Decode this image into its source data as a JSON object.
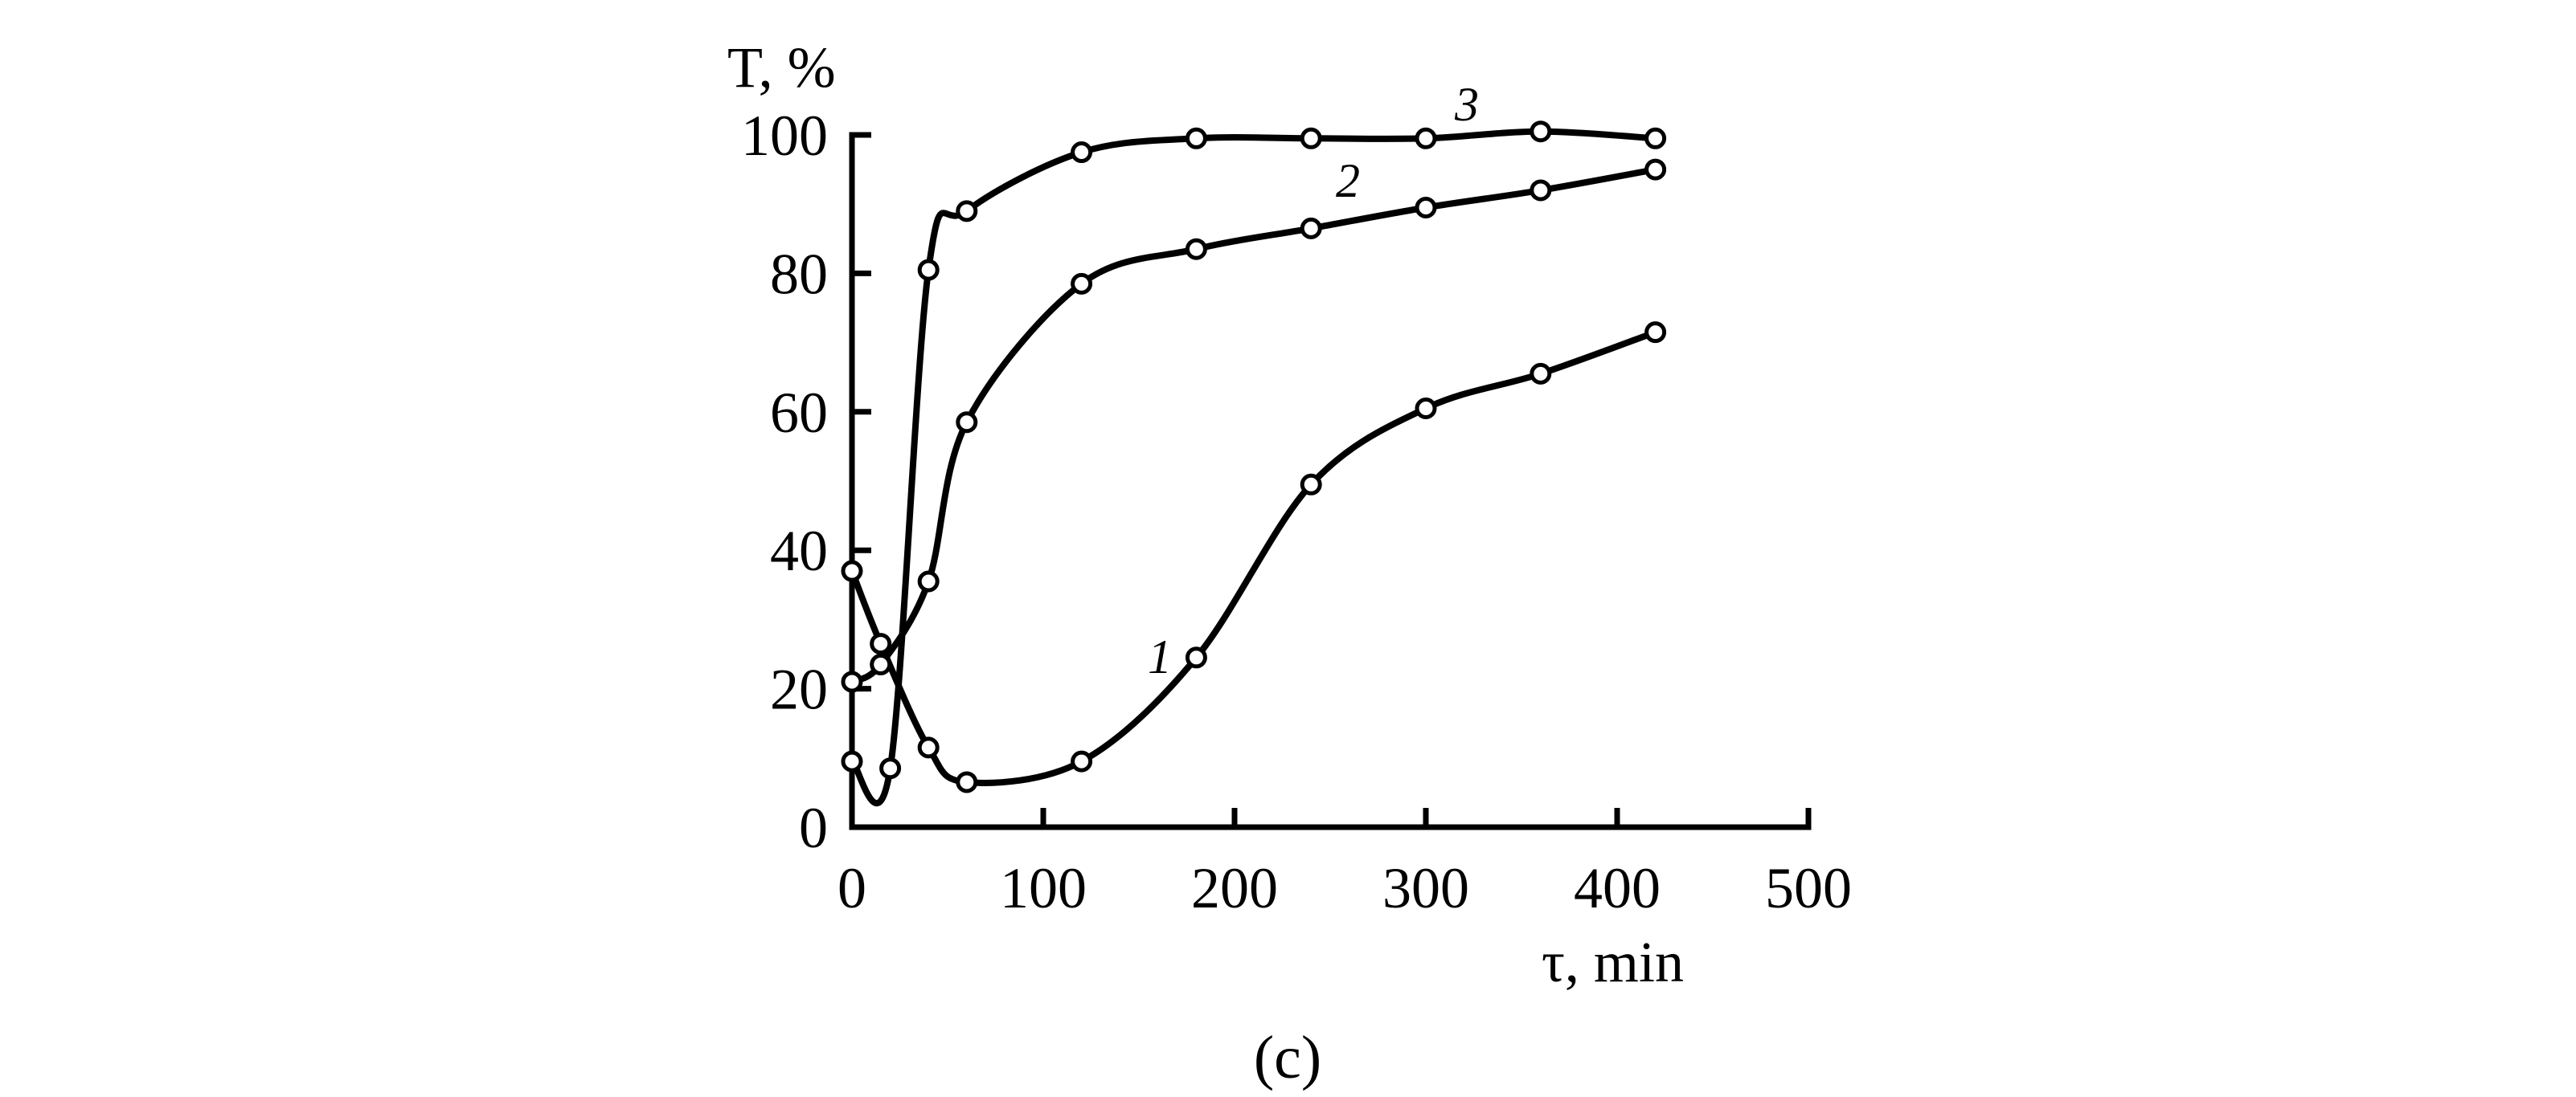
{
  "chart_data": {
    "type": "line",
    "title": "",
    "xlabel": "τ, min",
    "ylabel": "T, %",
    "xlim": [
      0,
      500
    ],
    "ylim": [
      0,
      100
    ],
    "xticks": [
      0,
      100,
      200,
      300,
      400,
      500
    ],
    "yticks": [
      0,
      20,
      40,
      60,
      80,
      100
    ],
    "grid": false,
    "panel_label": "(c)",
    "series": [
      {
        "name": "1",
        "x": [
          0,
          15,
          40,
          60,
          120,
          180,
          240,
          300,
          360,
          420
        ],
        "y": [
          37,
          26.5,
          11.5,
          6.5,
          9.5,
          24.5,
          49.5,
          60.5,
          65.5,
          71.5
        ]
      },
      {
        "name": "2",
        "x": [
          0,
          15,
          40,
          60,
          120,
          180,
          240,
          300,
          360,
          420
        ],
        "y": [
          21,
          23.5,
          35.5,
          58.5,
          78.5,
          83.5,
          86.5,
          89.5,
          92,
          95
        ]
      },
      {
        "name": "3",
        "x": [
          0,
          20,
          40,
          60,
          120,
          180,
          240,
          300,
          360,
          420
        ],
        "y": [
          9.5,
          8.5,
          80.5,
          89,
          97.5,
          99.5,
          99.5,
          99.5,
          100.5,
          99.5
        ]
      }
    ]
  }
}
